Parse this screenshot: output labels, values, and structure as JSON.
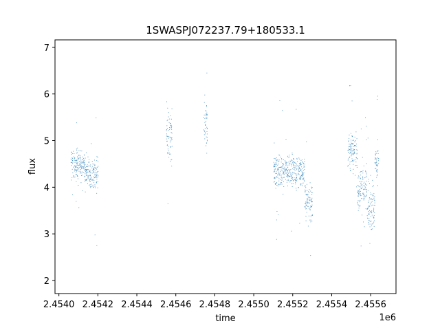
{
  "chart_data": {
    "type": "scatter",
    "title": "1SWASPJ072237.79+180533.1",
    "xlabel": "time",
    "ylabel": "flux",
    "x_offset_label": "1e6",
    "xlim": [
      2.45398,
      2.45573
    ],
    "ylim": [
      1.72,
      7.16
    ],
    "xticks": [
      2.454,
      2.4542,
      2.4544,
      2.4546,
      2.4548,
      2.455,
      2.4552,
      2.4554,
      2.4556
    ],
    "xtick_labels": [
      "2.4540",
      "2.4542",
      "2.4544",
      "2.4546",
      "2.4548",
      "2.4550",
      "2.4552",
      "2.4554",
      "2.4556"
    ],
    "yticks": [
      2,
      3,
      4,
      5,
      6,
      7
    ],
    "ytick_labels": [
      "2",
      "3",
      "4",
      "5",
      "6",
      "7"
    ],
    "grid": false,
    "marker_color": "#1f77b4",
    "point_clusters": [
      {
        "x_range": [
          2.45406,
          2.45413
        ],
        "y_center": 4.5,
        "y_spread": 0.2
      },
      {
        "x_range": [
          2.45413,
          2.4542
        ],
        "y_center": 4.3,
        "y_spread": 0.25
      },
      {
        "x_range": [
          2.45455,
          2.45458
        ],
        "y_center": 5.1,
        "y_spread": 0.4
      },
      {
        "x_range": [
          2.45474,
          2.45476
        ],
        "y_center": 5.3,
        "y_spread": 0.4
      },
      {
        "x_range": [
          2.4551,
          2.45526
        ],
        "y_center": 4.35,
        "y_spread": 0.25
      },
      {
        "x_range": [
          2.45526,
          2.4553
        ],
        "y_center": 3.7,
        "y_spread": 0.3
      },
      {
        "x_range": [
          2.45548,
          2.45553
        ],
        "y_center": 4.8,
        "y_spread": 0.3
      },
      {
        "x_range": [
          2.45553,
          2.45558
        ],
        "y_center": 4.0,
        "y_spread": 0.35
      },
      {
        "x_range": [
          2.45558,
          2.45562
        ],
        "y_center": 3.6,
        "y_spread": 0.4
      },
      {
        "x_range": [
          2.45562,
          2.45564
        ],
        "y_center": 4.5,
        "y_spread": 0.25
      }
    ]
  }
}
